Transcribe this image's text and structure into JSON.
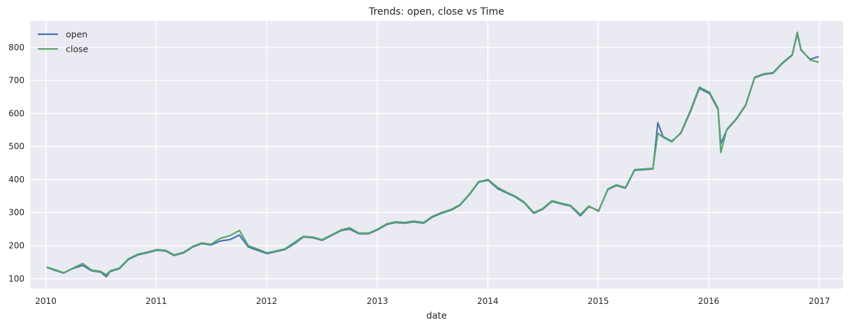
{
  "chart_data": {
    "type": "line",
    "title": "Trends: open, close vs Time",
    "xlabel": "date",
    "ylabel": "",
    "x_ticks": [
      "2010",
      "2011",
      "2012",
      "2013",
      "2014",
      "2015",
      "2016",
      "2017"
    ],
    "y_ticks": [
      100,
      200,
      300,
      400,
      500,
      600,
      700,
      800
    ],
    "xlim": [
      "2009-11-10",
      "2017-03-20"
    ],
    "ylim": [
      70,
      880
    ],
    "grid": true,
    "legend_position": "top-left",
    "series": [
      {
        "name": "open",
        "color": "#4C72B0",
        "x": [
          "2010-01-04",
          "2010-02-01",
          "2010-03-01",
          "2010-04-01",
          "2010-05-03",
          "2010-06-01",
          "2010-07-01",
          "2010-07-20",
          "2010-08-02",
          "2010-09-01",
          "2010-10-01",
          "2010-11-01",
          "2010-12-01",
          "2011-01-03",
          "2011-02-01",
          "2011-03-01",
          "2011-04-01",
          "2011-05-02",
          "2011-06-01",
          "2011-07-01",
          "2011-08-01",
          "2011-09-01",
          "2011-10-03",
          "2011-11-01",
          "2011-12-01",
          "2012-01-03",
          "2012-02-01",
          "2012-03-01",
          "2012-04-02",
          "2012-05-01",
          "2012-06-01",
          "2012-07-02",
          "2012-08-01",
          "2012-09-04",
          "2012-10-01",
          "2012-11-01",
          "2012-12-03",
          "2013-01-02",
          "2013-02-01",
          "2013-03-01",
          "2013-04-01",
          "2013-05-01",
          "2013-06-03",
          "2013-07-01",
          "2013-08-01",
          "2013-09-03",
          "2013-10-01",
          "2013-11-01",
          "2013-12-02",
          "2014-01-02",
          "2014-02-03",
          "2014-03-03",
          "2014-04-01",
          "2014-05-01",
          "2014-06-02",
          "2014-07-01",
          "2014-08-01",
          "2014-09-02",
          "2014-10-01",
          "2014-11-03",
          "2014-12-01",
          "2015-01-02",
          "2015-02-02",
          "2015-03-02",
          "2015-04-01",
          "2015-05-01",
          "2015-06-01",
          "2015-07-01",
          "2015-07-17",
          "2015-08-03",
          "2015-09-01",
          "2015-10-01",
          "2015-11-02",
          "2015-12-01",
          "2016-01-04",
          "2016-02-01",
          "2016-02-10",
          "2016-03-01",
          "2016-04-01",
          "2016-05-02",
          "2016-06-01",
          "2016-07-01",
          "2016-08-01",
          "2016-09-01",
          "2016-10-03",
          "2016-10-20",
          "2016-11-01",
          "2016-12-01",
          "2016-12-30"
        ],
        "y": [
          134,
          125,
          117,
          131,
          140,
          124,
          120,
          106,
          122,
          130,
          158,
          172,
          178,
          186,
          184,
          170,
          178,
          196,
          206,
          202,
          214,
          218,
          232,
          196,
          186,
          176,
          182,
          188,
          206,
          226,
          224,
          216,
          230,
          246,
          250,
          236,
          236,
          248,
          264,
          270,
          268,
          272,
          268,
          286,
          298,
          308,
          322,
          354,
          392,
          398,
          372,
          360,
          348,
          330,
          298,
          310,
          334,
          326,
          320,
          290,
          318,
          306,
          370,
          382,
          374,
          428,
          430,
          432,
          572,
          530,
          516,
          540,
          606,
          676,
          660,
          612,
          508,
          550,
          582,
          624,
          708,
          718,
          722,
          752,
          776,
          842,
          792,
          764,
          772
        ]
      },
      {
        "name": "close",
        "color": "#55A868",
        "x": [
          "2010-01-04",
          "2010-02-01",
          "2010-03-01",
          "2010-04-01",
          "2010-05-03",
          "2010-06-01",
          "2010-07-01",
          "2010-07-20",
          "2010-08-02",
          "2010-09-01",
          "2010-10-01",
          "2010-11-01",
          "2010-12-01",
          "2011-01-03",
          "2011-02-01",
          "2011-03-01",
          "2011-04-01",
          "2011-05-02",
          "2011-06-01",
          "2011-07-01",
          "2011-08-01",
          "2011-09-01",
          "2011-10-03",
          "2011-11-01",
          "2011-12-01",
          "2012-01-03",
          "2012-02-01",
          "2012-03-01",
          "2012-04-02",
          "2012-05-01",
          "2012-06-01",
          "2012-07-02",
          "2012-08-01",
          "2012-09-04",
          "2012-10-01",
          "2012-11-01",
          "2012-12-03",
          "2013-01-02",
          "2013-02-01",
          "2013-03-01",
          "2013-04-01",
          "2013-05-01",
          "2013-06-03",
          "2013-07-01",
          "2013-08-01",
          "2013-09-03",
          "2013-10-01",
          "2013-11-01",
          "2013-12-02",
          "2014-01-02",
          "2014-02-03",
          "2014-03-03",
          "2014-04-01",
          "2014-05-01",
          "2014-06-02",
          "2014-07-01",
          "2014-08-01",
          "2014-09-02",
          "2014-10-01",
          "2014-11-03",
          "2014-12-01",
          "2015-01-02",
          "2015-02-02",
          "2015-03-02",
          "2015-04-01",
          "2015-05-01",
          "2015-06-01",
          "2015-07-01",
          "2015-07-17",
          "2015-08-03",
          "2015-09-01",
          "2015-10-01",
          "2015-11-02",
          "2015-12-01",
          "2016-01-04",
          "2016-02-01",
          "2016-02-10",
          "2016-03-01",
          "2016-04-01",
          "2016-05-02",
          "2016-06-01",
          "2016-07-01",
          "2016-08-01",
          "2016-09-01",
          "2016-10-03",
          "2016-10-20",
          "2016-11-01",
          "2016-12-01",
          "2016-12-30"
        ],
        "y": [
          135,
          127,
          118,
          132,
          146,
          126,
          122,
          112,
          124,
          132,
          160,
          174,
          180,
          188,
          186,
          172,
          180,
          198,
          208,
          204,
          222,
          230,
          246,
          200,
          190,
          178,
          184,
          190,
          210,
          228,
          226,
          218,
          232,
          248,
          254,
          238,
          238,
          250,
          266,
          272,
          270,
          274,
          270,
          288,
          300,
          310,
          324,
          356,
          394,
          400,
          376,
          362,
          350,
          332,
          300,
          312,
          336,
          328,
          322,
          294,
          320,
          304,
          372,
          384,
          376,
          430,
          432,
          434,
          540,
          528,
          514,
          542,
          610,
          680,
          664,
          616,
          482,
          552,
          584,
          626,
          710,
          720,
          724,
          754,
          778,
          846,
          794,
          762,
          755
        ]
      }
    ]
  }
}
